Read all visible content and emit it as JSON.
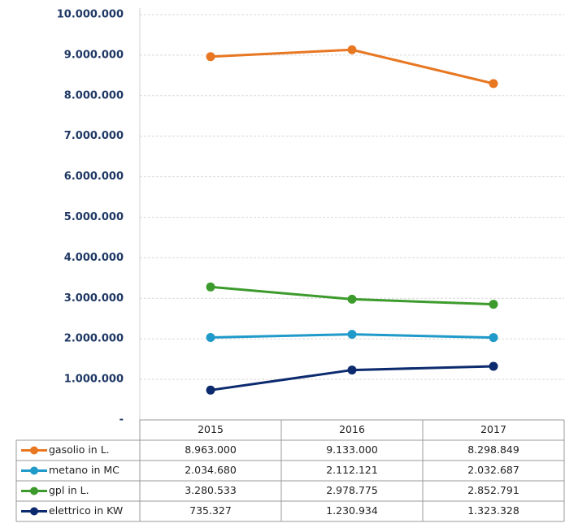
{
  "chart_data": {
    "type": "line",
    "categories": [
      "2015",
      "2016",
      "2017"
    ],
    "series": [
      {
        "name": "gasolio in L.",
        "color": "#e87722",
        "values": [
          8963000,
          9133000,
          8298849
        ],
        "value_labels": [
          "8.963.000",
          "9.133.000",
          "8.298.849"
        ]
      },
      {
        "name": "metano in MC",
        "color": "#1f9ac9",
        "values": [
          2034680,
          2112121,
          2032687
        ],
        "value_labels": [
          "2.034.680",
          "2.112.121",
          "2.032.687"
        ]
      },
      {
        "name": "gpl in L.",
        "color": "#3c9b2c",
        "values": [
          3280533,
          2978775,
          2852791
        ],
        "value_labels": [
          "3.280.533",
          "2.978.775",
          "2.852.791"
        ]
      },
      {
        "name": "elettrico in KW",
        "color": "#0c2a6e",
        "values": [
          735327,
          1230934,
          1323328
        ],
        "value_labels": [
          "735.327",
          "1.230.934",
          "1.323.328"
        ]
      }
    ],
    "ylim": [
      0,
      10000000
    ],
    "yticks": [
      {
        "value": 0,
        "label": "-"
      },
      {
        "value": 1000000,
        "label": "1.000.000"
      },
      {
        "value": 2000000,
        "label": "2.000.000"
      },
      {
        "value": 3000000,
        "label": "3.000.000"
      },
      {
        "value": 4000000,
        "label": "4.000.000"
      },
      {
        "value": 5000000,
        "label": "5.000.000"
      },
      {
        "value": 6000000,
        "label": "6.000.000"
      },
      {
        "value": 7000000,
        "label": "7.000.000"
      },
      {
        "value": 8000000,
        "label": "8.000.000"
      },
      {
        "value": 9000000,
        "label": "9.000.000"
      },
      {
        "value": 10000000,
        "label": "10.000.000"
      }
    ],
    "grid": true
  }
}
